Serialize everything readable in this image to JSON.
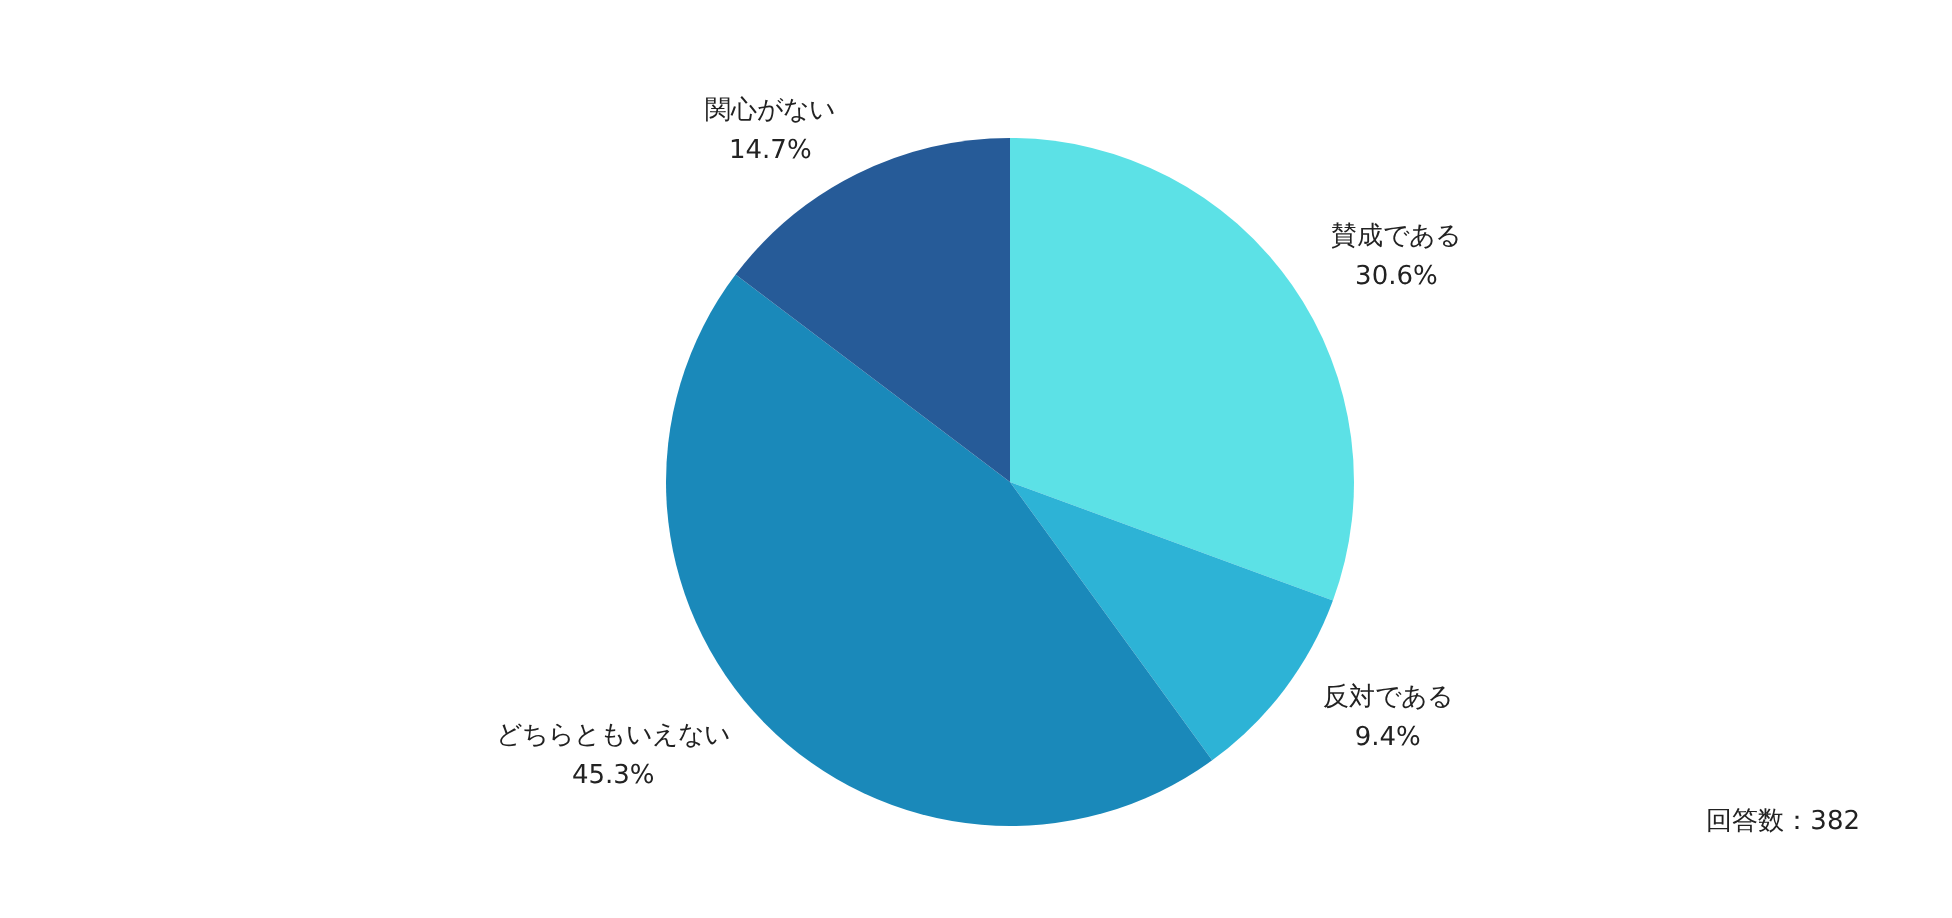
{
  "chart_data": {
    "type": "pie",
    "categories": [
      "賛成である",
      "反対である",
      "どちらともいえない",
      "関心がない"
    ],
    "values": [
      30.6,
      9.4,
      45.3,
      14.7
    ],
    "colors": [
      "#5ce1e6",
      "#2db3d6",
      "#1a89ba",
      "#265b98"
    ],
    "value_labels": [
      "30.6%",
      "9.4%",
      "45.3%",
      "14.7%"
    ],
    "legend": false,
    "annotations": [
      "回答数：382"
    ]
  }
}
